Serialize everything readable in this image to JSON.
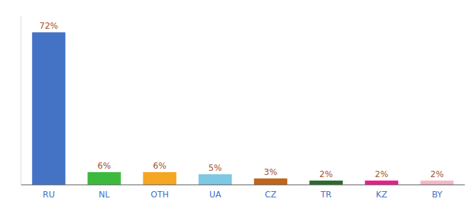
{
  "chart_data": {
    "type": "bar",
    "categories": [
      "RU",
      "NL",
      "OTH",
      "UA",
      "CZ",
      "TR",
      "KZ",
      "BY"
    ],
    "values": [
      72,
      6,
      6,
      5,
      3,
      2,
      2,
      2
    ],
    "value_labels": [
      "72%",
      "6%",
      "6%",
      "5%",
      "3%",
      "2%",
      "2%",
      "2%"
    ],
    "colors": [
      "#4472c4",
      "#3dba3d",
      "#f5a623",
      "#7ec8e3",
      "#c0651a",
      "#2d6a2d",
      "#e91e8c",
      "#f4b8c8"
    ],
    "ylim": [
      0,
      80
    ],
    "data_labels": true,
    "tick_labels": "x"
  }
}
